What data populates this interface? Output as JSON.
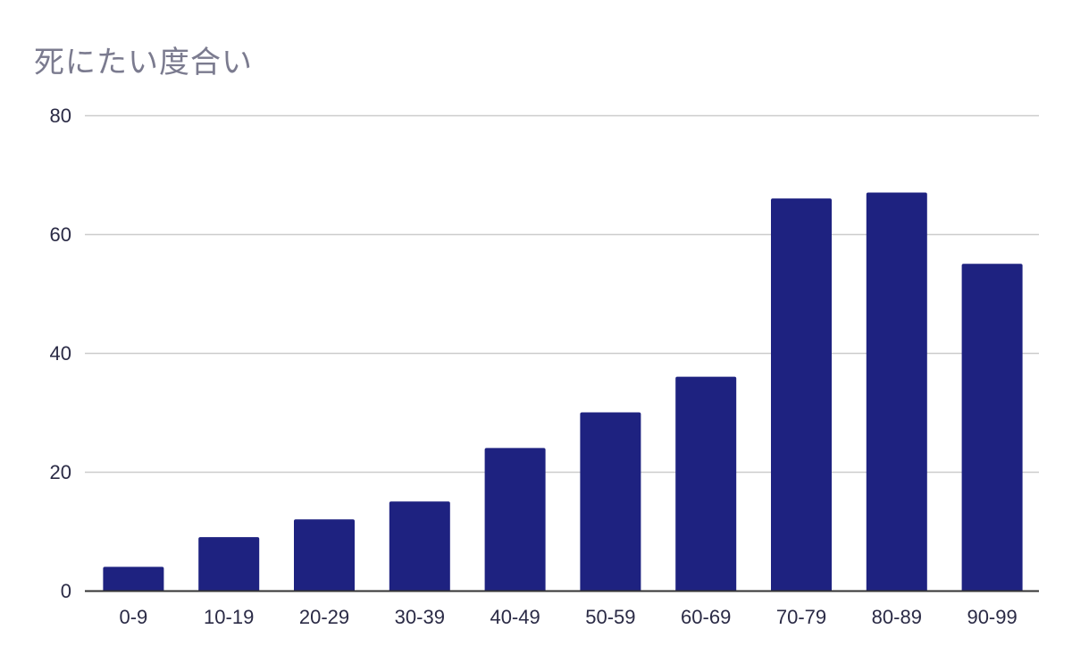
{
  "chart_data": {
    "type": "bar",
    "title": "死にたい度合い",
    "xlabel": "",
    "ylabel": "",
    "categories": [
      "0-9",
      "10-19",
      "20-29",
      "30-39",
      "40-49",
      "50-59",
      "60-69",
      "70-79",
      "80-89",
      "90-99"
    ],
    "values": [
      4,
      9,
      12,
      15,
      24,
      30,
      36,
      66,
      67,
      55
    ],
    "ylim": [
      0,
      80
    ],
    "yticks": [
      "0",
      "20",
      "40",
      "60",
      "80"
    ],
    "grid": true,
    "legend": "none",
    "bar_color": "#1e2280",
    "grid_color": "#cccccc",
    "axis_color": "#333333",
    "title_color": "#7b7b8f"
  }
}
